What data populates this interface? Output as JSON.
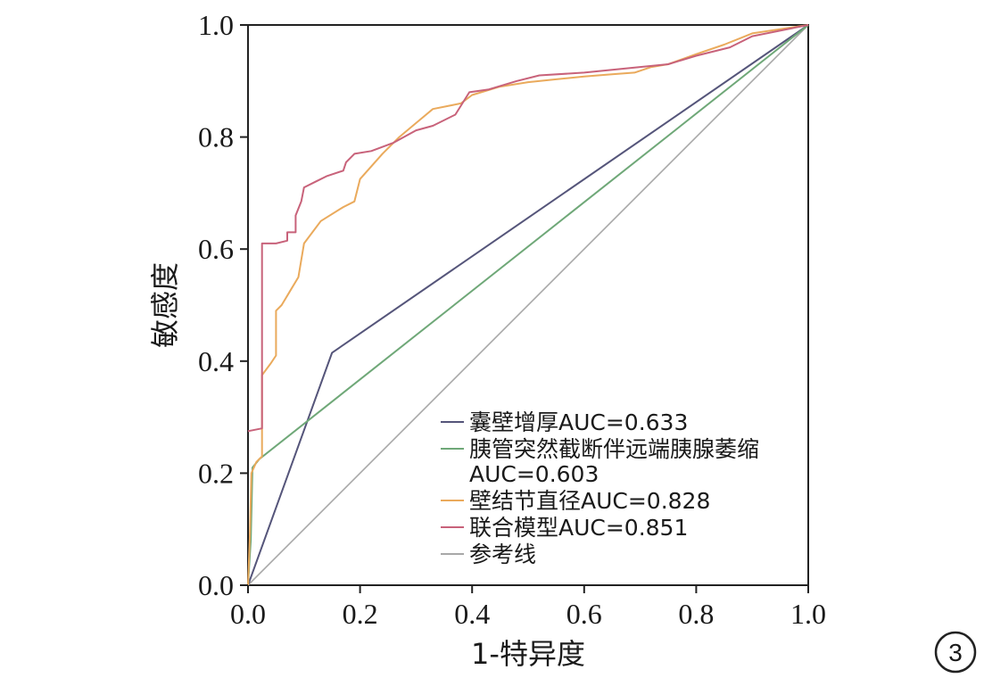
{
  "chart_data": {
    "type": "line",
    "xlabel": "1-特异度",
    "ylabel": "敏感度",
    "xlim": [
      0,
      1
    ],
    "ylim": [
      0,
      1
    ],
    "x_ticks": [
      "0.0",
      "0.2",
      "0.4",
      "0.6",
      "0.8",
      "1.0"
    ],
    "y_ticks": [
      "0.0",
      "0.2",
      "0.4",
      "0.6",
      "0.8",
      "1.0"
    ],
    "grid": false,
    "legend_position": "bottom-right",
    "series": [
      {
        "name": "囊壁增厚AUC=0.633",
        "color": "#55557a",
        "points": [
          [
            0,
            0
          ],
          [
            0.15,
            0.415
          ],
          [
            1,
            1
          ]
        ]
      },
      {
        "name": "胰管突然截断伴远端胰腺萎缩 AUC=0.603",
        "color": "#6fa878",
        "points": [
          [
            0,
            0
          ],
          [
            0.005,
            0.08
          ],
          [
            0.008,
            0.21
          ],
          [
            0.02,
            0.225
          ],
          [
            1,
            1
          ]
        ]
      },
      {
        "name": "壁结节直径AUC=0.828",
        "color": "#eaaa5c",
        "points": [
          [
            0,
            0
          ],
          [
            0.003,
            0.08
          ],
          [
            0.006,
            0.2
          ],
          [
            0.015,
            0.22
          ],
          [
            0.025,
            0.23
          ],
          [
            0.025,
            0.375
          ],
          [
            0.04,
            0.395
          ],
          [
            0.05,
            0.41
          ],
          [
            0.05,
            0.49
          ],
          [
            0.06,
            0.5
          ],
          [
            0.075,
            0.525
          ],
          [
            0.09,
            0.55
          ],
          [
            0.1,
            0.61
          ],
          [
            0.13,
            0.65
          ],
          [
            0.17,
            0.675
          ],
          [
            0.19,
            0.685
          ],
          [
            0.2,
            0.725
          ],
          [
            0.24,
            0.77
          ],
          [
            0.27,
            0.8
          ],
          [
            0.3,
            0.825
          ],
          [
            0.33,
            0.85
          ],
          [
            0.38,
            0.86
          ],
          [
            0.4,
            0.875
          ],
          [
            0.45,
            0.89
          ],
          [
            0.5,
            0.898
          ],
          [
            0.55,
            0.903
          ],
          [
            0.6,
            0.908
          ],
          [
            0.65,
            0.912
          ],
          [
            0.69,
            0.915
          ],
          [
            0.72,
            0.925
          ],
          [
            0.75,
            0.93
          ],
          [
            0.8,
            0.948
          ],
          [
            0.85,
            0.965
          ],
          [
            0.9,
            0.985
          ],
          [
            1,
            1
          ]
        ]
      },
      {
        "name": "联合模型AUC=0.851",
        "color": "#c8627a",
        "points": [
          [
            0,
            0.275
          ],
          [
            0.025,
            0.28
          ],
          [
            0.025,
            0.61
          ],
          [
            0.05,
            0.61
          ],
          [
            0.07,
            0.615
          ],
          [
            0.07,
            0.63
          ],
          [
            0.085,
            0.63
          ],
          [
            0.085,
            0.66
          ],
          [
            0.095,
            0.685
          ],
          [
            0.1,
            0.71
          ],
          [
            0.12,
            0.72
          ],
          [
            0.14,
            0.73
          ],
          [
            0.17,
            0.74
          ],
          [
            0.175,
            0.755
          ],
          [
            0.19,
            0.77
          ],
          [
            0.22,
            0.775
          ],
          [
            0.26,
            0.79
          ],
          [
            0.3,
            0.812
          ],
          [
            0.33,
            0.82
          ],
          [
            0.37,
            0.84
          ],
          [
            0.395,
            0.88
          ],
          [
            0.43,
            0.885
          ],
          [
            0.48,
            0.9
          ],
          [
            0.52,
            0.91
          ],
          [
            0.6,
            0.915
          ],
          [
            0.7,
            0.925
          ],
          [
            0.75,
            0.93
          ],
          [
            0.8,
            0.945
          ],
          [
            0.86,
            0.96
          ],
          [
            0.9,
            0.98
          ],
          [
            1,
            1
          ]
        ]
      },
      {
        "name": "参考线",
        "color": "#a8a8a8",
        "points": [
          [
            0,
            0
          ],
          [
            1,
            1
          ]
        ]
      }
    ],
    "badge": "3"
  }
}
